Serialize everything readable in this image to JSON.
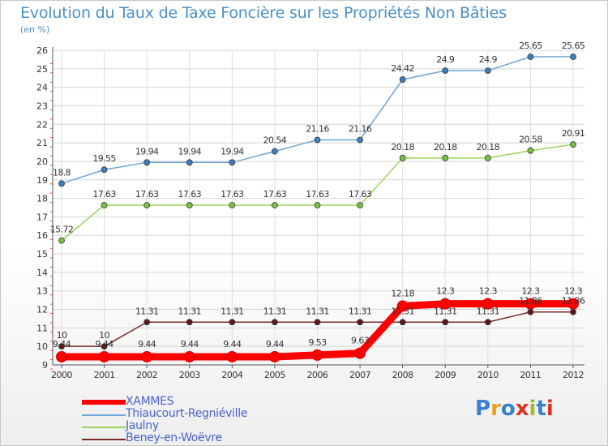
{
  "title": "Evolution du Taux de Taxe Foncière sur les Propriétés Non Bâties",
  "unit_label": "(en %)",
  "logo_text": "Proxiti",
  "chart_data": {
    "type": "line",
    "x": [
      "2000",
      "2001",
      "2002",
      "2003",
      "2004",
      "2005",
      "2006",
      "2007",
      "2008",
      "2009",
      "2010",
      "2011",
      "2012"
    ],
    "ylim": [
      9,
      26
    ],
    "yticks": [
      9,
      10,
      11,
      12,
      13,
      14,
      15,
      16,
      17,
      18,
      19,
      20,
      21,
      22,
      23,
      24,
      25,
      26
    ],
    "grid": true,
    "legend_position": "bottom-left",
    "series": [
      {
        "name": "XAMMES",
        "color": "#ff0000",
        "values": [
          9.44,
          9.44,
          9.44,
          9.44,
          9.44,
          9.44,
          9.53,
          9.63,
          12.18,
          12.3,
          12.3,
          12.3,
          12.3
        ],
        "labels": [
          "9.44",
          "9.44",
          "9.44",
          "9.44",
          "9.44",
          "9.44",
          "9.53",
          "9.63",
          "12.18",
          "12.3",
          "12.3",
          "12.3",
          "12.3"
        ]
      },
      {
        "name": "Thiaucourt-Regniéville",
        "color": "#6ea6d6",
        "marker": "#3f7fbf",
        "values": [
          18.8,
          19.55,
          19.94,
          19.94,
          19.94,
          20.54,
          21.16,
          21.16,
          24.42,
          24.9,
          24.9,
          25.65,
          25.65
        ],
        "labels": [
          "18.8",
          "19.55",
          "19.94",
          "19.94",
          "19.94",
          "20.54",
          "21.16",
          "21.16",
          "24.42",
          "24.9",
          "24.9",
          "25.65",
          "25.65"
        ]
      },
      {
        "name": "Jaulny",
        "color": "#9ad55a",
        "marker": "#7ac143",
        "values": [
          15.72,
          17.63,
          17.63,
          17.63,
          17.63,
          17.63,
          17.63,
          17.63,
          20.18,
          20.18,
          20.18,
          20.58,
          20.91
        ],
        "labels": [
          "15.72",
          "17.63",
          "17.63",
          "17.63",
          "17.63",
          "17.63",
          "17.63",
          "17.63",
          "20.18",
          "20.18",
          "20.18",
          "20.58",
          "20.91"
        ]
      },
      {
        "name": "Beney-en-Woëvre",
        "color": "#7a2a2a",
        "marker": "#5c1a1a",
        "values": [
          10,
          10,
          11.31,
          11.31,
          11.31,
          11.31,
          11.31,
          11.31,
          11.31,
          11.31,
          11.31,
          11.86,
          11.86
        ],
        "labels": [
          "10",
          "10",
          "11.31",
          "11.31",
          "11.31",
          "11.31",
          "11.31",
          "11.31",
          "11.31",
          "11.31",
          "11.31",
          "11.86",
          "11.86"
        ]
      }
    ]
  }
}
